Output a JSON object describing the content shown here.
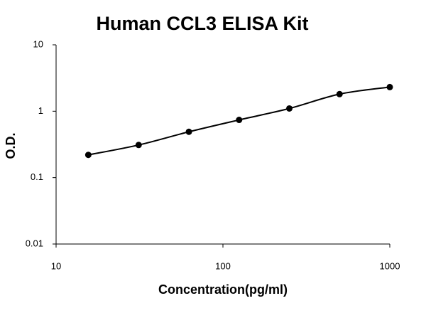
{
  "chart_data": {
    "type": "scatter",
    "title": "Human CCL3 ELISA Kit",
    "x_label": "Concentration(pg/ml)",
    "y_label": "O.D.",
    "x": [
      15.6,
      31.25,
      62.5,
      125,
      250,
      500,
      1000
    ],
    "values": [
      0.22,
      0.31,
      0.49,
      0.74,
      1.1,
      1.81,
      2.31
    ],
    "color": "#000000",
    "line": true,
    "log_x": true,
    "log_y": true,
    "xlim": [
      10,
      1000
    ],
    "xticks": [
      10,
      100,
      1000
    ],
    "ylim": [
      0.01,
      10
    ],
    "yticks": [
      0.01,
      0.1,
      1,
      10
    ],
    "grid": false
  }
}
